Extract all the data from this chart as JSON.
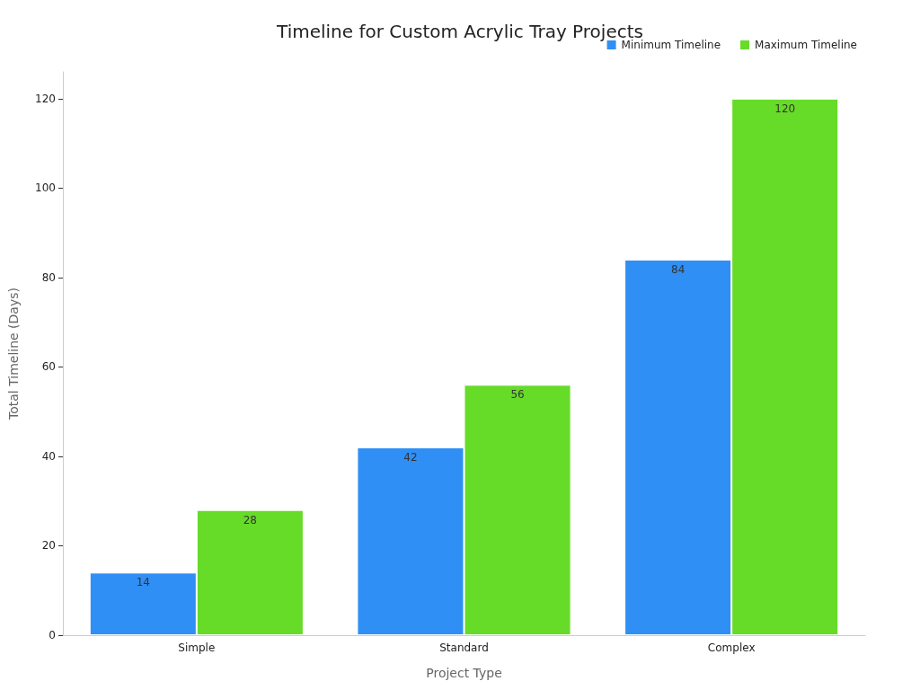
{
  "chart_data": {
    "type": "bar",
    "title": "Timeline for Custom Acrylic Tray Projects",
    "xlabel": "Project Type",
    "ylabel": "Total Timeline (Days)",
    "categories": [
      "Simple",
      "Standard",
      "Complex"
    ],
    "series": [
      {
        "name": "Minimum Timeline",
        "color": "#2f8ff5",
        "values": [
          14,
          42,
          84
        ]
      },
      {
        "name": "Maximum Timeline",
        "color": "#66db28",
        "values": [
          28,
          56,
          120
        ]
      }
    ],
    "ylim": [
      0,
      126
    ],
    "yticks": [
      0,
      20,
      40,
      60,
      80,
      100,
      120
    ],
    "grid": false,
    "legend": "top right",
    "data_labels": true
  }
}
